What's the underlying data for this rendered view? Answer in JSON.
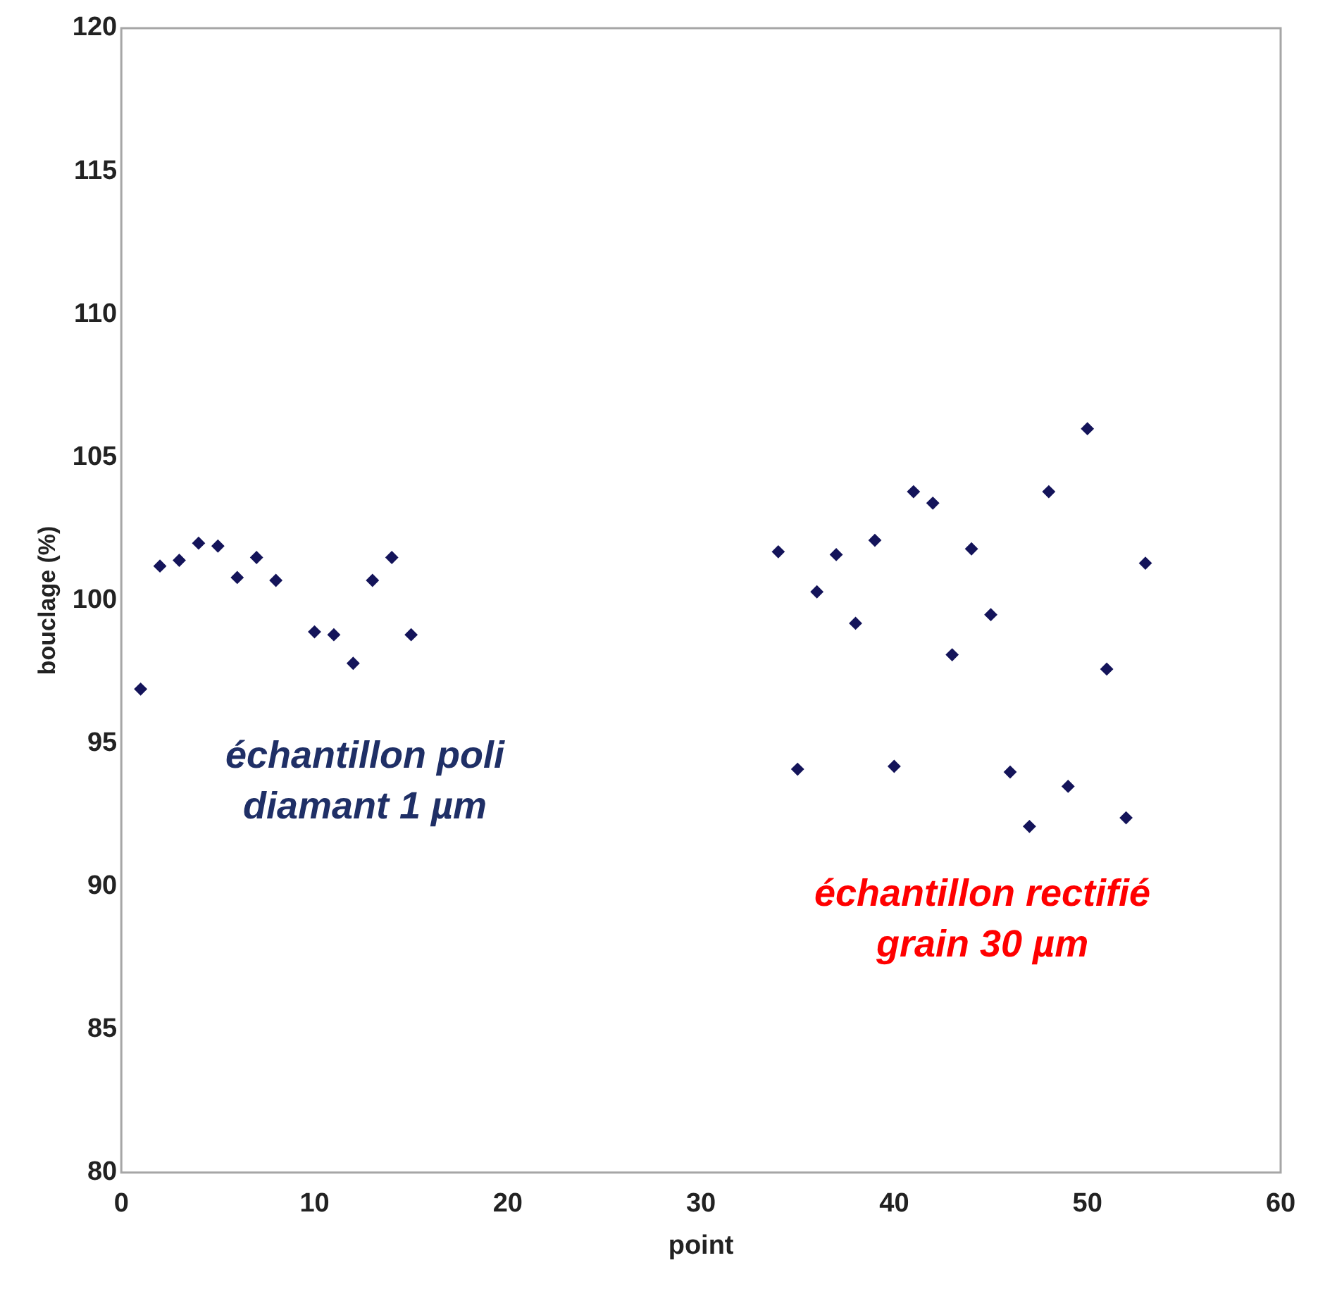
{
  "chart_data": {
    "type": "scatter",
    "xlabel": "point",
    "ylabel": "bouclage (%)",
    "xlim": [
      0,
      60
    ],
    "xticks": [
      0,
      10,
      20,
      30,
      40,
      50,
      60
    ],
    "ylim": [
      80,
      120
    ],
    "yticks": [
      80,
      85,
      90,
      95,
      100,
      105,
      110,
      115,
      120
    ],
    "grid": false,
    "legend": false,
    "marker": "diamond",
    "series": [
      {
        "color": "#14145a",
        "x": [
          1,
          2,
          3,
          4,
          5,
          6,
          7,
          8,
          10,
          11,
          12,
          13,
          14,
          15,
          34,
          35,
          36,
          37,
          38,
          39,
          40,
          41,
          42,
          43,
          44,
          45,
          46,
          47,
          48,
          49,
          50,
          51,
          52,
          53
        ],
        "values": [
          96.9,
          101.2,
          101.4,
          102.0,
          101.9,
          100.8,
          101.5,
          100.7,
          98.9,
          98.8,
          97.8,
          100.7,
          101.5,
          98.8,
          101.7,
          94.1,
          100.3,
          101.6,
          99.2,
          102.1,
          94.2,
          103.8,
          103.4,
          98.1,
          101.8,
          99.5,
          94.0,
          92.1,
          103.8,
          93.5,
          106.0,
          97.6,
          92.4,
          101.3
        ]
      }
    ],
    "annotations": [
      "échantillon poli\ndiamant 1 µm",
      "échantillon rectifié\ngrain 30 µm"
    ]
  }
}
